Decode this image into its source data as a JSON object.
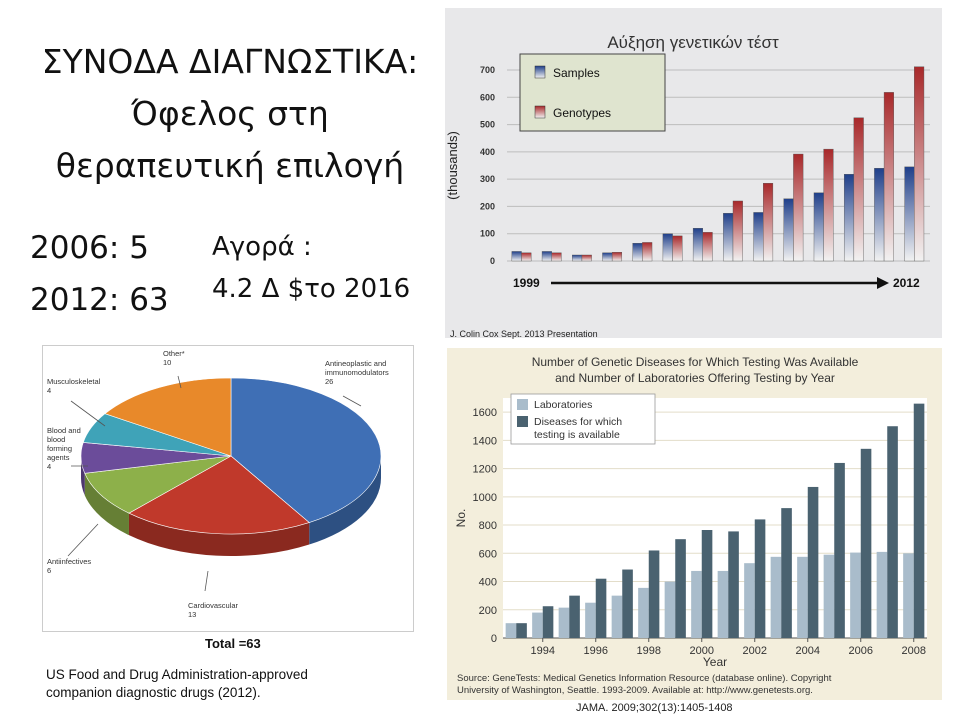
{
  "slide": {
    "title_lines": [
      "ΣΥΝΟΔΑ ΔΙΑΓΝΩΣΤΙΚΑ:",
      "Όφελος στη",
      "θεραπευτική επιλογή"
    ],
    "stat_2006": "2006: 5",
    "stat_2012": "2012: 63",
    "market_line1": "Αγορά :",
    "market_line2": "4.2 Δ $το 2016",
    "source_top_right": "J. Colin Cox Sept. 2013 Presentation",
    "pie_total": "Total =63",
    "pie_caption_line1": "US Food and Drug Administration-approved",
    "pie_caption_line2": "companion diagnostic drugs (2012).",
    "jama_ref": "JAMA. 2009;302(13):1405-1408"
  },
  "chart_data": [
    {
      "type": "bar",
      "title": "Αύξηση γενετικών τέστ",
      "ylabel": "(thousands)",
      "ylim": [
        0,
        700
      ],
      "yticks": [
        0,
        100,
        200,
        300,
        400,
        500,
        600,
        700
      ],
      "x_start_label": "1999",
      "x_end_label": "2012",
      "legend_position": "top-left",
      "colors": {
        "Samples": "#1f3f8a",
        "Genotypes": "#a8282a"
      },
      "series": [
        {
          "name": "Samples",
          "values": [
            35,
            35,
            22,
            30,
            65,
            100,
            120,
            175,
            178,
            228,
            250,
            318,
            340,
            345
          ]
        },
        {
          "name": "Genotypes",
          "values": [
            30,
            30,
            22,
            32,
            68,
            92,
            105,
            220,
            285,
            392,
            410,
            525,
            618,
            712
          ]
        }
      ]
    },
    {
      "type": "pie",
      "labels": [
        "Antineoplastic and immunomodulators",
        "Cardiovascular",
        "Antiinfectives",
        "Blood and blood forming agents",
        "Musculoskeletal",
        "Other*"
      ],
      "label_lines": [
        [
          "Antineoplastic and",
          "immunomodulators",
          "26"
        ],
        [
          "Cardiovascular",
          "13"
        ],
        [
          "Antiinfectives",
          "6"
        ],
        [
          "Blood and",
          "blood",
          "forming",
          "agents",
          "4"
        ],
        [
          "Musculoskeletal",
          "4"
        ],
        [
          "Other*",
          "10"
        ]
      ],
      "values": [
        26,
        13,
        6,
        4,
        4,
        10
      ],
      "colors": [
        "#3f6fb5",
        "#c0392b",
        "#8db04a",
        "#6b4c9a",
        "#3fa3b8",
        "#e8892a"
      ]
    },
    {
      "type": "bar",
      "title_lines": [
        "Number of Genetic Diseases for Which Testing Was Available",
        "and Number of Laboratories Offering Testing by Year"
      ],
      "xlabel": "Year",
      "ylabel": "No.",
      "ylim": [
        0,
        1700
      ],
      "yticks": [
        0,
        200,
        400,
        600,
        800,
        1000,
        1200,
        1400,
        1600
      ],
      "categories": [
        "1993",
        "1994",
        "1995",
        "1996",
        "1997",
        "1998",
        "1999",
        "2000",
        "2001",
        "2002",
        "2003",
        "2004",
        "2005",
        "2006",
        "2007",
        "2008"
      ],
      "xtick_labels": [
        "1994",
        "1996",
        "1998",
        "2000",
        "2002",
        "2004",
        "2006",
        "2008"
      ],
      "legend_position": "top-left",
      "colors": {
        "Laboratories": "#a9bccb",
        "Diseases": "#4a6270"
      },
      "legend_labels": [
        "Laboratories",
        "Diseases for which",
        "testing is available"
      ],
      "series": [
        {
          "name": "Laboratories",
          "values": [
            105,
            180,
            215,
            250,
            300,
            355,
            400,
            475,
            475,
            530,
            575,
            575,
            590,
            605,
            610,
            600
          ]
        },
        {
          "name": "Diseases for which testing is available",
          "values": [
            105,
            225,
            300,
            420,
            485,
            620,
            700,
            765,
            755,
            840,
            920,
            1070,
            1240,
            1340,
            1500,
            1660
          ]
        }
      ],
      "source_lines": [
        "Source: GeneTests: Medical Genetics Information Resource (database online). Copyright",
        "University of Washington, Seattle. 1993-2009. Available at: http://www.genetests.org."
      ]
    }
  ]
}
